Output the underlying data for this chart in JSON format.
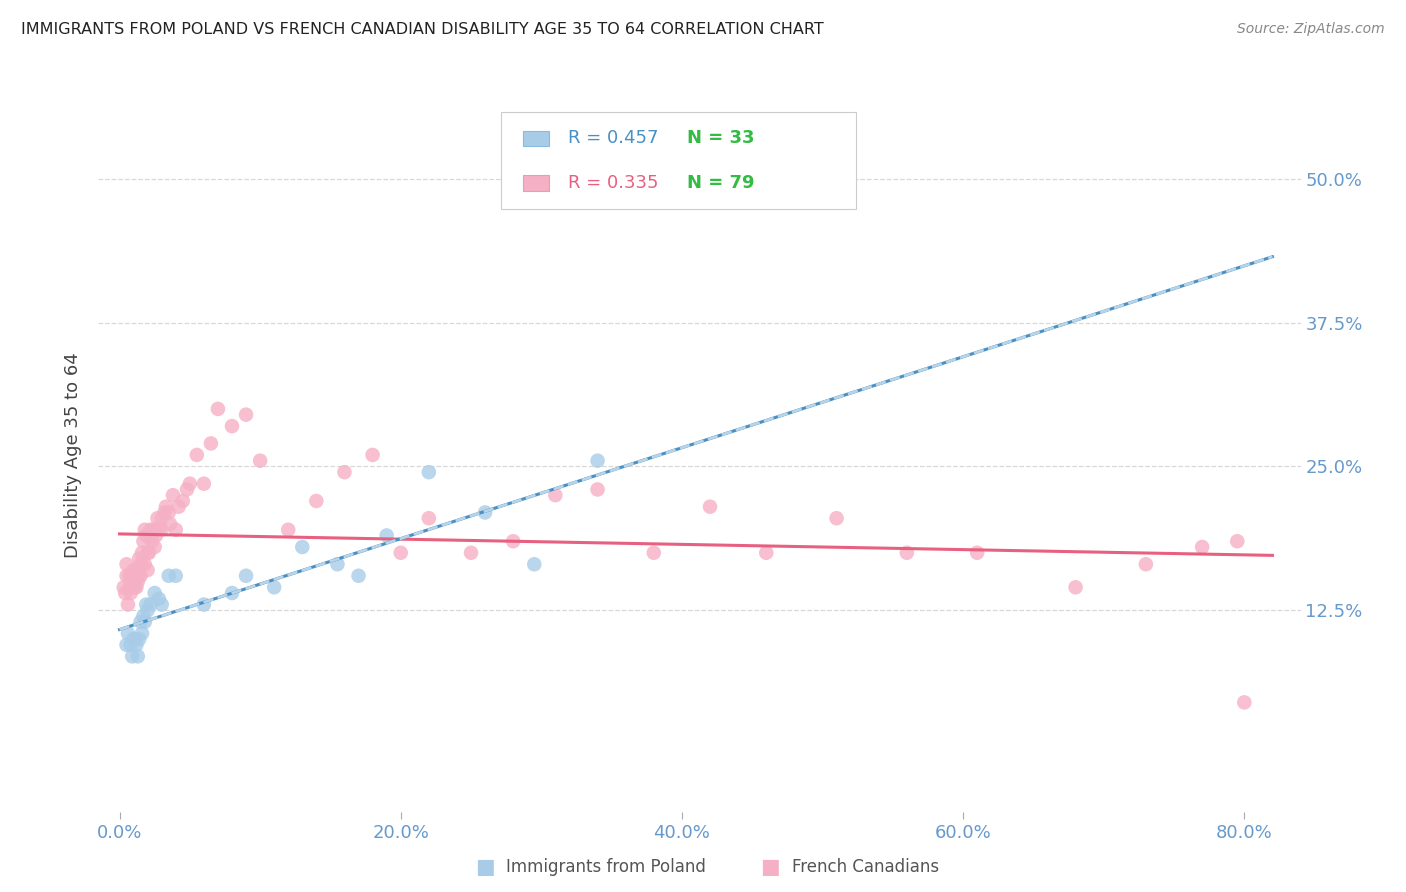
{
  "title": "IMMIGRANTS FROM POLAND VS FRENCH CANADIAN DISABILITY AGE 35 TO 64 CORRELATION CHART",
  "source": "Source: ZipAtlas.com",
  "ylabel": "Disability Age 35 to 64",
  "legend_label_1": "Immigrants from Poland",
  "legend_label_2": "French Canadians",
  "legend_R1": "R = 0.457",
  "legend_N1": "N = 33",
  "legend_R2": "R = 0.335",
  "legend_N2": "N = 79",
  "color_poland": "#A8CCE8",
  "color_french": "#F5B0C5",
  "color_poland_line": "#4A90C4",
  "color_polish_dash": "#B8D4E8",
  "color_french_line": "#E86080",
  "color_axis_text": "#6699CC",
  "color_R1_text": "#4A90C4",
  "color_R2_text": "#E86080",
  "color_N_text": "#33BB44",
  "ytick_labels": [
    "12.5%",
    "25.0%",
    "37.5%",
    "50.0%"
  ],
  "ytick_values": [
    0.125,
    0.25,
    0.375,
    0.5
  ],
  "xtick_labels": [
    "0.0%",
    "20.0%",
    "40.0%",
    "60.0%",
    "80.0%"
  ],
  "xtick_values": [
    0.0,
    0.2,
    0.4,
    0.6,
    0.8
  ],
  "xlim": [
    -0.015,
    0.84
  ],
  "ylim": [
    -0.05,
    0.57
  ],
  "poland_x": [
    0.005,
    0.006,
    0.008,
    0.009,
    0.01,
    0.011,
    0.012,
    0.013,
    0.014,
    0.015,
    0.016,
    0.017,
    0.018,
    0.019,
    0.02,
    0.022,
    0.025,
    0.028,
    0.03,
    0.035,
    0.04,
    0.06,
    0.08,
    0.09,
    0.11,
    0.13,
    0.155,
    0.17,
    0.19,
    0.22,
    0.26,
    0.295,
    0.34
  ],
  "poland_y": [
    0.095,
    0.105,
    0.095,
    0.085,
    0.1,
    0.1,
    0.095,
    0.085,
    0.1,
    0.115,
    0.105,
    0.12,
    0.115,
    0.13,
    0.125,
    0.13,
    0.14,
    0.135,
    0.13,
    0.155,
    0.155,
    0.13,
    0.14,
    0.155,
    0.145,
    0.18,
    0.165,
    0.155,
    0.19,
    0.245,
    0.21,
    0.165,
    0.255
  ],
  "french_x": [
    0.003,
    0.004,
    0.005,
    0.005,
    0.006,
    0.007,
    0.007,
    0.008,
    0.009,
    0.009,
    0.01,
    0.01,
    0.011,
    0.011,
    0.012,
    0.012,
    0.013,
    0.013,
    0.014,
    0.014,
    0.015,
    0.015,
    0.016,
    0.016,
    0.017,
    0.018,
    0.018,
    0.019,
    0.02,
    0.02,
    0.021,
    0.022,
    0.023,
    0.024,
    0.025,
    0.025,
    0.026,
    0.027,
    0.028,
    0.03,
    0.03,
    0.032,
    0.033,
    0.035,
    0.036,
    0.038,
    0.04,
    0.042,
    0.045,
    0.048,
    0.05,
    0.055,
    0.06,
    0.065,
    0.07,
    0.08,
    0.09,
    0.1,
    0.12,
    0.14,
    0.16,
    0.18,
    0.2,
    0.22,
    0.25,
    0.28,
    0.31,
    0.34,
    0.38,
    0.42,
    0.46,
    0.51,
    0.56,
    0.61,
    0.68,
    0.73,
    0.77,
    0.795,
    0.8
  ],
  "french_y": [
    0.145,
    0.14,
    0.155,
    0.165,
    0.13,
    0.145,
    0.155,
    0.14,
    0.145,
    0.155,
    0.15,
    0.16,
    0.145,
    0.155,
    0.145,
    0.16,
    0.15,
    0.16,
    0.155,
    0.17,
    0.155,
    0.165,
    0.165,
    0.175,
    0.185,
    0.195,
    0.165,
    0.19,
    0.16,
    0.175,
    0.175,
    0.195,
    0.185,
    0.195,
    0.18,
    0.195,
    0.19,
    0.205,
    0.195,
    0.195,
    0.205,
    0.21,
    0.215,
    0.21,
    0.2,
    0.225,
    0.195,
    0.215,
    0.22,
    0.23,
    0.235,
    0.26,
    0.235,
    0.27,
    0.3,
    0.285,
    0.295,
    0.255,
    0.195,
    0.22,
    0.245,
    0.26,
    0.175,
    0.205,
    0.175,
    0.185,
    0.225,
    0.23,
    0.175,
    0.215,
    0.175,
    0.205,
    0.175,
    0.175,
    0.145,
    0.165,
    0.18,
    0.185,
    0.045
  ]
}
